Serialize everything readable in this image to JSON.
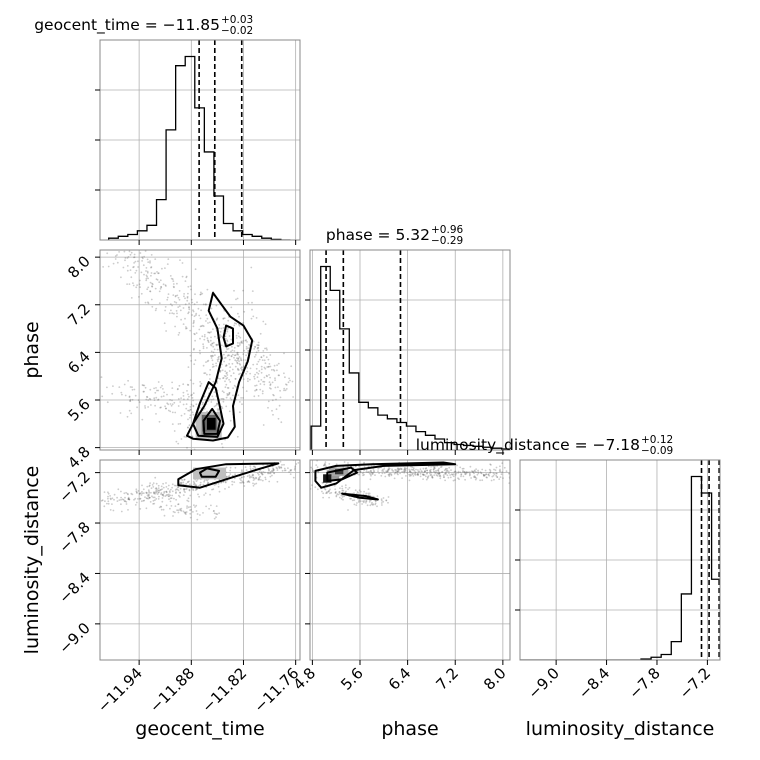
{
  "chart_data": {
    "type": "corner",
    "params": [
      "geocent_time",
      "phase",
      "luminosity_distance"
    ],
    "axis_labels": [
      "geocent_time",
      "phase",
      "luminosity_distance"
    ],
    "ranges": {
      "geocent_time": [
        -11.985,
        -11.755
      ],
      "phase": [
        4.76,
        8.12
      ],
      "luminosity_distance": [
        -9.43,
        -7.05
      ]
    },
    "ticks": {
      "geocent_time": [
        -11.94,
        -11.88,
        -11.82,
        -11.76
      ],
      "phase": [
        4.8,
        5.6,
        6.4,
        7.2,
        8.0
      ],
      "luminosity_distance": [
        -9.0,
        -8.4,
        -7.8,
        -7.2
      ]
    },
    "tick_labels": {
      "geocent_time": [
        "−11.94",
        "−11.88",
        "−11.82",
        "−11.76"
      ],
      "phase": [
        "4.8",
        "5.6",
        "6.4",
        "7.2",
        "8.0"
      ],
      "luminosity_distance": [
        "−9.0",
        "−8.4",
        "−7.8",
        "−7.2"
      ]
    },
    "titles": [
      {
        "param": "geocent_time",
        "text": "geocent_time = −11.85",
        "plus": "+0.03",
        "minus": "−0.02"
      },
      {
        "param": "phase",
        "text": "phase = 5.32",
        "plus": "+0.96",
        "minus": "−0.29"
      },
      {
        "param": "luminosity_distance",
        "text": "luminosity_distance = −7.18",
        "plus": "+0.12",
        "minus": "−0.09"
      }
    ],
    "histograms": {
      "geocent_time": {
        "edges": [
          -11.975,
          -11.964,
          -11.953,
          -11.942,
          -11.931,
          -11.92,
          -11.909,
          -11.898,
          -11.887,
          -11.876,
          -11.865,
          -11.854,
          -11.843,
          -11.832,
          -11.821,
          -11.81,
          -11.799,
          -11.788,
          -11.777,
          -11.766
        ],
        "counts": [
          1,
          2,
          3,
          5,
          8,
          22,
          60,
          95,
          100,
          72,
          48,
          24,
          9,
          5,
          3,
          2,
          1,
          0.3,
          0
        ],
        "quantiles": [
          -11.871,
          -11.853,
          -11.822
        ]
      },
      "phase": {
        "edges": [
          4.78,
          4.94,
          5.1,
          5.26,
          5.42,
          5.58,
          5.74,
          5.9,
          6.06,
          6.22,
          6.38,
          6.54,
          6.7,
          6.86,
          7.02,
          7.18,
          7.34,
          7.5,
          7.66,
          7.82,
          7.98,
          8.14
        ],
        "counts": [
          13,
          100,
          87,
          66,
          42,
          26,
          23,
          19,
          17,
          15,
          13,
          10,
          8,
          6,
          4,
          3,
          2.5,
          2,
          1.5,
          1,
          0.5
        ],
        "quantiles": [
          5.03,
          5.32,
          6.28
        ]
      },
      "luminosity_distance": {
        "edges": [
          -9.43,
          -9.31,
          -9.19,
          -9.07,
          -8.95,
          -8.83,
          -8.71,
          -8.59,
          -8.47,
          -8.35,
          -8.23,
          -8.11,
          -7.99,
          -7.87,
          -7.75,
          -7.63,
          -7.51,
          -7.39,
          -7.27,
          -7.15,
          -7.03
        ],
        "counts": [
          0,
          0,
          0,
          0,
          0,
          0,
          0,
          0,
          0,
          0,
          0,
          0,
          0.5,
          1.5,
          3,
          10,
          36,
          100,
          91,
          44
        ],
        "quantiles": [
          -7.27,
          -7.18,
          -7.06
        ]
      }
    },
    "scatter_clouds": [
      {
        "panel": "phase_vs_geocent_time",
        "bands": [
          {
            "x0": -11.96,
            "x1": -11.775,
            "y0": 8.05,
            "y1": 5.75,
            "spread": [
              0.012,
              0.35
            ],
            "n": 520
          },
          {
            "x0": -11.955,
            "x1": -11.86,
            "y0": 5.75,
            "y1": 5.4,
            "spread": [
              0.02,
              0.18
            ],
            "n": 130
          },
          {
            "x0": -11.875,
            "x1": -11.825,
            "y0": 5.0,
            "y1": 6.8,
            "spread": [
              0.018,
              0.5
            ],
            "n": 320
          }
        ]
      },
      {
        "panel": "luminosity_distance_vs_geocent_time",
        "bands": [
          {
            "x0": -11.965,
            "x1": -11.77,
            "y0": -7.55,
            "y1": -7.13,
            "spread": [
              0.02,
              0.06
            ],
            "n": 480
          },
          {
            "x0": -11.9,
            "x1": -11.86,
            "y0": -7.6,
            "y1": -7.7,
            "spread": [
              0.015,
              0.05
            ],
            "n": 60
          }
        ]
      },
      {
        "panel": "luminosity_distance_vs_phase",
        "bands": [
          {
            "x0": 4.85,
            "x1": 8.1,
            "y0": -7.15,
            "y1": -7.22,
            "spread": [
              0.35,
              0.05
            ],
            "n": 500
          },
          {
            "x0": 4.9,
            "x1": 5.9,
            "y0": -7.38,
            "y1": -7.55,
            "spread": [
              0.15,
              0.05
            ],
            "n": 150
          }
        ]
      }
    ],
    "contours": [
      {
        "panel": "phase_vs_geocent_time",
        "levels": [
          [
            [
              -11.878,
              4.95
            ],
            [
              -11.855,
              4.92
            ],
            [
              -11.838,
              4.97
            ],
            [
              -11.83,
              5.15
            ],
            [
              -11.832,
              5.5
            ],
            [
              -11.825,
              5.9
            ],
            [
              -11.815,
              6.25
            ],
            [
              -11.81,
              6.6
            ],
            [
              -11.82,
              6.85
            ],
            [
              -11.835,
              7.0
            ],
            [
              -11.845,
              7.2
            ],
            [
              -11.855,
              7.4
            ],
            [
              -11.86,
              7.1
            ],
            [
              -11.85,
              6.8
            ],
            [
              -11.845,
              6.3
            ],
            [
              -11.852,
              5.9
            ],
            [
              -11.865,
              5.5
            ],
            [
              -11.878,
              5.2
            ],
            [
              -11.885,
              5.0
            ],
            [
              -11.878,
              4.95
            ]
          ],
          [
            [
              -11.872,
              5.0
            ],
            [
              -11.85,
              4.98
            ],
            [
              -11.843,
              5.2
            ],
            [
              -11.848,
              5.55
            ],
            [
              -11.852,
              5.8
            ],
            [
              -11.86,
              5.9
            ],
            [
              -11.87,
              5.55
            ],
            [
              -11.878,
              5.2
            ],
            [
              -11.872,
              5.0
            ]
          ],
          [
            [
              -11.84,
              6.5
            ],
            [
              -11.832,
              6.55
            ],
            [
              -11.832,
              6.8
            ],
            [
              -11.84,
              6.85
            ],
            [
              -11.843,
              6.65
            ],
            [
              -11.84,
              6.5
            ]
          ],
          [
            [
              -11.865,
              5.03
            ],
            [
              -11.85,
              5.03
            ],
            [
              -11.847,
              5.25
            ],
            [
              -11.856,
              5.45
            ],
            [
              -11.866,
              5.25
            ],
            [
              -11.865,
              5.03
            ]
          ]
        ]
      },
      {
        "panel": "luminosity_distance_vs_geocent_time",
        "levels": [
          [
            [
              -11.895,
              -7.35
            ],
            [
              -11.87,
              -7.38
            ],
            [
              -11.84,
              -7.28
            ],
            [
              -11.8,
              -7.15
            ],
            [
              -11.78,
              -7.09
            ],
            [
              -11.84,
              -7.1
            ],
            [
              -11.875,
              -7.16
            ],
            [
              -11.895,
              -7.28
            ],
            [
              -11.895,
              -7.35
            ]
          ],
          [
            [
              -11.868,
              -7.25
            ],
            [
              -11.852,
              -7.25
            ],
            [
              -11.848,
              -7.18
            ],
            [
              -11.862,
              -7.15
            ],
            [
              -11.87,
              -7.2
            ],
            [
              -11.868,
              -7.25
            ]
          ]
        ]
      },
      {
        "panel": "luminosity_distance_vs_phase",
        "levels": [
          [
            [
              4.85,
              -7.18
            ],
            [
              5.2,
              -7.12
            ],
            [
              5.8,
              -7.1
            ],
            [
              7.0,
              -7.08
            ],
            [
              7.2,
              -7.1
            ],
            [
              6.0,
              -7.12
            ],
            [
              5.5,
              -7.17
            ],
            [
              5.2,
              -7.33
            ],
            [
              4.95,
              -7.38
            ],
            [
              4.85,
              -7.3
            ],
            [
              4.85,
              -7.18
            ]
          ],
          [
            [
              5.05,
              -7.2
            ],
            [
              5.45,
              -7.14
            ],
            [
              5.55,
              -7.2
            ],
            [
              5.3,
              -7.28
            ],
            [
              5.05,
              -7.3
            ],
            [
              5.05,
              -7.2
            ]
          ],
          [
            [
              5.3,
              -7.45
            ],
            [
              5.7,
              -7.48
            ],
            [
              5.9,
              -7.52
            ],
            [
              5.6,
              -7.5
            ],
            [
              5.3,
              -7.45
            ]
          ]
        ]
      }
    ],
    "dense_blocks": [
      {
        "panel": "phase_vs_geocent_time",
        "cells": [
          [
            -11.875,
            4.95,
            -11.845,
            5.4,
            0.25
          ],
          [
            -11.868,
            5.0,
            -11.85,
            5.35,
            0.6
          ],
          [
            -11.862,
            5.1,
            -11.852,
            5.3,
            1.0
          ],
          [
            -11.868,
            4.98,
            -11.85,
            5.07,
            0.45
          ]
        ]
      },
      {
        "panel": "luminosity_distance_vs_geocent_time",
        "cells": [
          [
            -11.868,
            -7.24,
            -11.85,
            -7.17,
            0.95
          ],
          [
            -11.878,
            -7.28,
            -11.84,
            -7.14,
            0.25
          ]
        ]
      },
      {
        "panel": "luminosity_distance_vs_phase",
        "cells": [
          [
            5.08,
            -7.24,
            5.4,
            -7.14,
            0.35
          ],
          [
            5.18,
            -7.22,
            5.32,
            -7.16,
            0.8
          ],
          [
            4.98,
            -7.32,
            5.12,
            -7.22,
            0.9
          ],
          [
            5.12,
            -7.3,
            5.25,
            -7.24,
            0.4
          ]
        ]
      }
    ],
    "grid": true,
    "quantiles_shown": [
      0.16,
      0.5,
      0.84
    ]
  }
}
